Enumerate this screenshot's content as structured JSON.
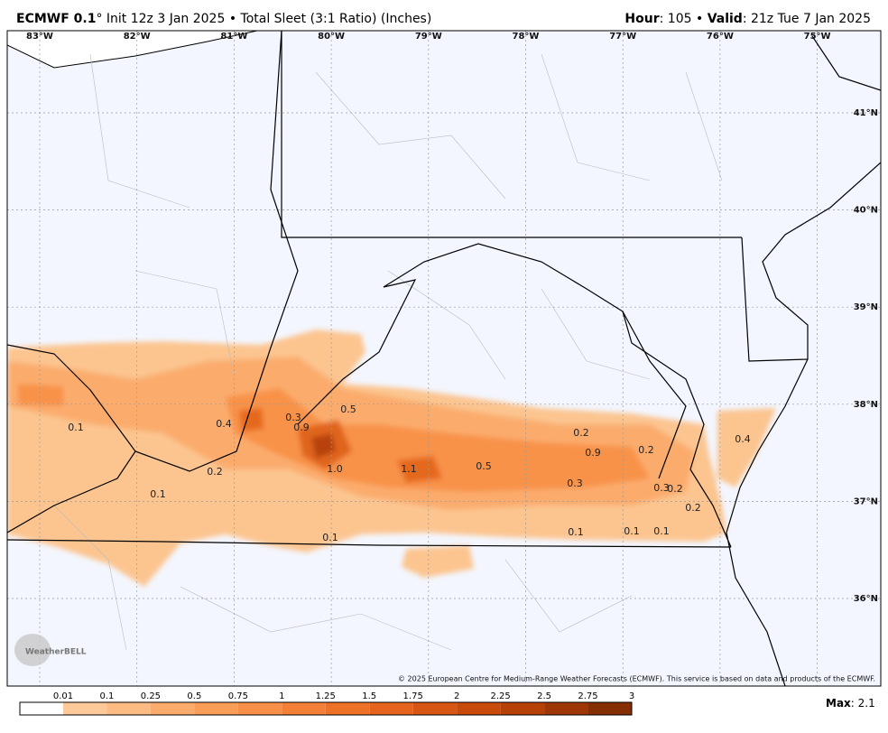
{
  "header": {
    "model": "ECMWF 0.1",
    "rest": "° Init 12z 3 Jan 2025 • Total Sleet (3:1 Ratio) (Inches)",
    "hour_label": "Hour",
    "hour_value": ": 105 • ",
    "valid_label": "Valid",
    "valid_value": ": 21z Tue 7 Jan 2025"
  },
  "map": {
    "lon_labels": [
      "83°W",
      "82°W",
      "81°W",
      "80°W",
      "79°W",
      "78°W",
      "77°W",
      "76°W",
      "75°W"
    ],
    "lat_labels": [
      "41°N",
      "40°N",
      "39°N",
      "38°N",
      "37°N",
      "36°N"
    ],
    "contour_labels": [
      "0.1",
      "0.4",
      "0.3",
      "0.9",
      "0.5",
      "1.0",
      "1.1",
      "0.5",
      "0.2",
      "0.1",
      "0.1",
      "0.2",
      "0.9",
      "0.2",
      "0.3",
      "0.3",
      "0.2",
      "0.2",
      "0.1",
      "0.1",
      "0.1",
      "0.4"
    ],
    "logo": "WeatherBELL",
    "copyright": "© 2025 European Centre for Medium-Range Weather Forecasts (ECMWF). This service is based on data and products of the ECMWF."
  },
  "colorbar": {
    "ticks": [
      "0.01",
      "0.1",
      "0.25",
      "0.5",
      "0.75",
      "1",
      "1.25",
      "1.5",
      "1.75",
      "2",
      "2.25",
      "2.5",
      "2.75",
      "3"
    ],
    "colors": [
      "#ffffff",
      "#fdc999",
      "#fcbb82",
      "#fbac6d",
      "#fa9d59",
      "#f88f48",
      "#f48037",
      "#ee7128",
      "#e5631c",
      "#d85613",
      "#c94b0c",
      "#b54107",
      "#9e3705",
      "#862e03"
    ],
    "max_label": "Max",
    "max_value": ": 2.1"
  }
}
